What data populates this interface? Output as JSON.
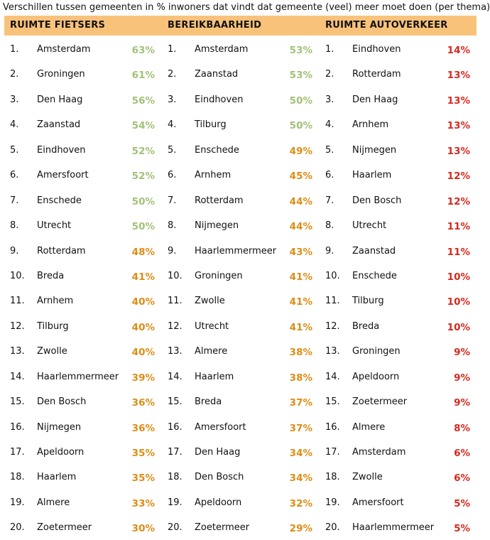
{
  "title": "Verschillen tussen gemeenten in % inwoners dat vindt dat gemeente (veel) meer moet doen (per thema)",
  "columns": [
    {
      "header": "RUIMTE FIETSERS",
      "rows": [
        {
          "rank": "1.",
          "name": "Amsterdam",
          "pct": "63%",
          "color": "green"
        },
        {
          "rank": "2.",
          "name": "Groningen",
          "pct": "61%",
          "color": "green"
        },
        {
          "rank": "3.",
          "name": "Den Haag",
          "pct": "56%",
          "color": "green"
        },
        {
          "rank": "4.",
          "name": "Zaanstad",
          "pct": "54%",
          "color": "green"
        },
        {
          "rank": "5.",
          "name": "Eindhoven",
          "pct": "52%",
          "color": "green"
        },
        {
          "rank": "6.",
          "name": "Amersfoort",
          "pct": "52%",
          "color": "green"
        },
        {
          "rank": "7.",
          "name": "Enschede",
          "pct": "50%",
          "color": "green"
        },
        {
          "rank": "8.",
          "name": "Utrecht",
          "pct": "50%",
          "color": "green"
        },
        {
          "rank": "9.",
          "name": "Rotterdam",
          "pct": "48%",
          "color": "orange"
        },
        {
          "rank": "10.",
          "name": "Breda",
          "pct": "41%",
          "color": "orange"
        },
        {
          "rank": "11.",
          "name": "Arnhem",
          "pct": "40%",
          "color": "orange"
        },
        {
          "rank": "12.",
          "name": "Tilburg",
          "pct": "40%",
          "color": "orange"
        },
        {
          "rank": "13.",
          "name": "Zwolle",
          "pct": "40%",
          "color": "orange"
        },
        {
          "rank": "14.",
          "name": "Haarlemmermeer",
          "pct": "39%",
          "color": "orange"
        },
        {
          "rank": "15.",
          "name": "Den Bosch",
          "pct": "36%",
          "color": "orange"
        },
        {
          "rank": "16.",
          "name": "Nijmegen",
          "pct": "36%",
          "color": "orange"
        },
        {
          "rank": "17.",
          "name": "Apeldoorn",
          "pct": "35%",
          "color": "orange"
        },
        {
          "rank": "18.",
          "name": "Haarlem",
          "pct": "35%",
          "color": "orange"
        },
        {
          "rank": "19.",
          "name": "Almere",
          "pct": "33%",
          "color": "orange"
        },
        {
          "rank": "20.",
          "name": "Zoetermeer",
          "pct": "30%",
          "color": "orange"
        }
      ]
    },
    {
      "header": "BEREIKBAARHEID",
      "rows": [
        {
          "rank": "1.",
          "name": "Amsterdam",
          "pct": "53%",
          "color": "green"
        },
        {
          "rank": "2.",
          "name": "Zaanstad",
          "pct": "53%",
          "color": "green"
        },
        {
          "rank": "3.",
          "name": "Eindhoven",
          "pct": "50%",
          "color": "green"
        },
        {
          "rank": "4.",
          "name": "Tilburg",
          "pct": "50%",
          "color": "green"
        },
        {
          "rank": "5.",
          "name": "Enschede",
          "pct": "49%",
          "color": "orange"
        },
        {
          "rank": "6.",
          "name": "Arnhem",
          "pct": "45%",
          "color": "orange"
        },
        {
          "rank": "7.",
          "name": "Rotterdam",
          "pct": "44%",
          "color": "orange"
        },
        {
          "rank": "8.",
          "name": "Nijmegen",
          "pct": "44%",
          "color": "orange"
        },
        {
          "rank": "9.",
          "name": "Haarlemmermeer",
          "pct": "43%",
          "color": "orange"
        },
        {
          "rank": "10.",
          "name": "Groningen",
          "pct": "41%",
          "color": "orange"
        },
        {
          "rank": "11.",
          "name": "Zwolle",
          "pct": "41%",
          "color": "orange"
        },
        {
          "rank": "12.",
          "name": "Utrecht",
          "pct": "41%",
          "color": "orange"
        },
        {
          "rank": "13.",
          "name": "Almere",
          "pct": "38%",
          "color": "orange"
        },
        {
          "rank": "14.",
          "name": "Haarlem",
          "pct": "38%",
          "color": "orange"
        },
        {
          "rank": "15.",
          "name": "Breda",
          "pct": "37%",
          "color": "orange"
        },
        {
          "rank": "16.",
          "name": "Amersfoort",
          "pct": "37%",
          "color": "orange"
        },
        {
          "rank": "17.",
          "name": "Den Haag",
          "pct": "34%",
          "color": "orange"
        },
        {
          "rank": "18.",
          "name": "Den Bosch",
          "pct": "34%",
          "color": "orange"
        },
        {
          "rank": "19.",
          "name": "Apeldoorn",
          "pct": "32%",
          "color": "orange"
        },
        {
          "rank": "20.",
          "name": "Zoetermeer",
          "pct": "29%",
          "color": "orange"
        }
      ]
    },
    {
      "header": "RUIMTE AUTOVERKEER",
      "rows": [
        {
          "rank": "1.",
          "name": "Eindhoven",
          "pct": "14%",
          "color": "red"
        },
        {
          "rank": "2.",
          "name": "Rotterdam",
          "pct": "13%",
          "color": "red"
        },
        {
          "rank": "3.",
          "name": "Den Haag",
          "pct": "13%",
          "color": "red"
        },
        {
          "rank": "4.",
          "name": "Arnhem",
          "pct": "13%",
          "color": "red"
        },
        {
          "rank": "5.",
          "name": "Nijmegen",
          "pct": "13%",
          "color": "red"
        },
        {
          "rank": "6.",
          "name": "Haarlem",
          "pct": "12%",
          "color": "red"
        },
        {
          "rank": "7.",
          "name": "Den Bosch",
          "pct": "12%",
          "color": "red"
        },
        {
          "rank": "8.",
          "name": "Utrecht",
          "pct": "11%",
          "color": "red"
        },
        {
          "rank": "9.",
          "name": "Zaanstad",
          "pct": "11%",
          "color": "red"
        },
        {
          "rank": "10.",
          "name": "Enschede",
          "pct": "10%",
          "color": "red"
        },
        {
          "rank": "11.",
          "name": "Tilburg",
          "pct": "10%",
          "color": "red"
        },
        {
          "rank": "12.",
          "name": "Breda",
          "pct": "10%",
          "color": "red"
        },
        {
          "rank": "13.",
          "name": "Groningen",
          "pct": "9%",
          "color": "red"
        },
        {
          "rank": "14.",
          "name": "Apeldoorn",
          "pct": "9%",
          "color": "red"
        },
        {
          "rank": "15.",
          "name": "Zoetermeer",
          "pct": "9%",
          "color": "red"
        },
        {
          "rank": "16.",
          "name": "Almere",
          "pct": "8%",
          "color": "red"
        },
        {
          "rank": "17.",
          "name": "Amsterdam",
          "pct": "6%",
          "color": "red"
        },
        {
          "rank": "18.",
          "name": "Zwolle",
          "pct": "6%",
          "color": "red"
        },
        {
          "rank": "19.",
          "name": "Amersfoort",
          "pct": "5%",
          "color": "red"
        },
        {
          "rank": "20.",
          "name": "Haarlemmermeer",
          "pct": "5%",
          "color": "red"
        }
      ]
    }
  ],
  "colors": {
    "header_bg": "#f9c27b",
    "green": "#a3c178",
    "orange": "#dd8d16",
    "red": "#d42a1f"
  }
}
